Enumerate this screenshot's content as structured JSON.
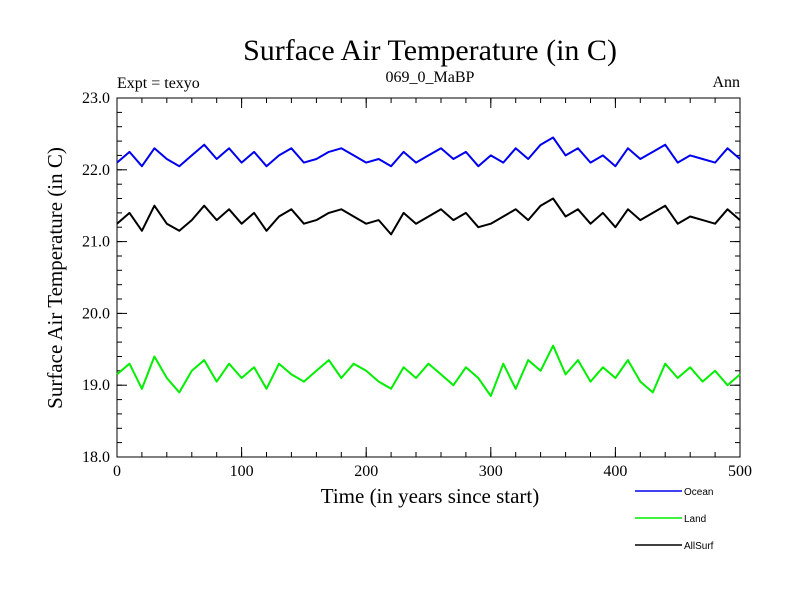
{
  "chart_data": {
    "type": "line",
    "title": "Surface Air Temperature (in C)",
    "subtitle": "069_0_MaBP",
    "left_label": "Expt = texyo",
    "right_label": "Ann",
    "xlabel": "Time (in years since start)",
    "ylabel": "Surface Air Temperature (in C)",
    "xlim": [
      0,
      500
    ],
    "ylim": [
      18.0,
      23.0
    ],
    "x_ticks": [
      "0",
      "100",
      "200",
      "300",
      "400",
      "500"
    ],
    "y_ticks": [
      "18.0",
      "19.0",
      "20.0",
      "21.0",
      "22.0",
      "23.0"
    ],
    "grid": false,
    "legend_position": "bottom-right",
    "series": [
      {
        "name": "Ocean",
        "color": "#0000ee",
        "x": [
          0,
          10,
          20,
          30,
          40,
          50,
          60,
          70,
          80,
          90,
          100,
          110,
          120,
          130,
          140,
          150,
          160,
          170,
          180,
          190,
          200,
          210,
          220,
          230,
          240,
          250,
          260,
          270,
          280,
          290,
          300,
          310,
          320,
          330,
          340,
          350,
          360,
          370,
          380,
          390,
          400,
          410,
          420,
          430,
          440,
          450,
          460,
          470,
          480,
          490,
          500
        ],
        "values": [
          22.1,
          22.25,
          22.05,
          22.3,
          22.15,
          22.05,
          22.2,
          22.35,
          22.15,
          22.3,
          22.1,
          22.25,
          22.05,
          22.2,
          22.3,
          22.1,
          22.15,
          22.25,
          22.3,
          22.2,
          22.1,
          22.15,
          22.05,
          22.25,
          22.1,
          22.2,
          22.3,
          22.15,
          22.25,
          22.05,
          22.2,
          22.1,
          22.3,
          22.15,
          22.35,
          22.45,
          22.2,
          22.3,
          22.1,
          22.2,
          22.05,
          22.3,
          22.15,
          22.25,
          22.35,
          22.1,
          22.2,
          22.15,
          22.1,
          22.3,
          22.15
        ]
      },
      {
        "name": "Land",
        "color": "#00ee00",
        "x": [
          0,
          10,
          20,
          30,
          40,
          50,
          60,
          70,
          80,
          90,
          100,
          110,
          120,
          130,
          140,
          150,
          160,
          170,
          180,
          190,
          200,
          210,
          220,
          230,
          240,
          250,
          260,
          270,
          280,
          290,
          300,
          310,
          320,
          330,
          340,
          350,
          360,
          370,
          380,
          390,
          400,
          410,
          420,
          430,
          440,
          450,
          460,
          470,
          480,
          490,
          500
        ],
        "values": [
          19.15,
          19.3,
          18.95,
          19.4,
          19.1,
          18.9,
          19.2,
          19.35,
          19.05,
          19.3,
          19.1,
          19.25,
          18.95,
          19.3,
          19.15,
          19.05,
          19.2,
          19.35,
          19.1,
          19.3,
          19.2,
          19.05,
          18.95,
          19.25,
          19.1,
          19.3,
          19.15,
          19.0,
          19.25,
          19.1,
          18.85,
          19.3,
          18.95,
          19.35,
          19.2,
          19.55,
          19.15,
          19.35,
          19.05,
          19.25,
          19.1,
          19.35,
          19.05,
          18.9,
          19.3,
          19.1,
          19.25,
          19.05,
          19.2,
          19.0,
          19.15
        ]
      },
      {
        "name": "AllSurf",
        "color": "#000000",
        "x": [
          0,
          10,
          20,
          30,
          40,
          50,
          60,
          70,
          80,
          90,
          100,
          110,
          120,
          130,
          140,
          150,
          160,
          170,
          180,
          190,
          200,
          210,
          220,
          230,
          240,
          250,
          260,
          270,
          280,
          290,
          300,
          310,
          320,
          330,
          340,
          350,
          360,
          370,
          380,
          390,
          400,
          410,
          420,
          430,
          440,
          450,
          460,
          470,
          480,
          490,
          500
        ],
        "values": [
          21.25,
          21.4,
          21.15,
          21.5,
          21.25,
          21.15,
          21.3,
          21.5,
          21.3,
          21.45,
          21.25,
          21.4,
          21.15,
          21.35,
          21.45,
          21.25,
          21.3,
          21.4,
          21.45,
          21.35,
          21.25,
          21.3,
          21.1,
          21.4,
          21.25,
          21.35,
          21.45,
          21.3,
          21.4,
          21.2,
          21.25,
          21.35,
          21.45,
          21.3,
          21.5,
          21.6,
          21.35,
          21.45,
          21.25,
          21.4,
          21.2,
          21.45,
          21.3,
          21.4,
          21.5,
          21.25,
          21.35,
          21.3,
          21.25,
          21.45,
          21.3
        ]
      }
    ]
  }
}
